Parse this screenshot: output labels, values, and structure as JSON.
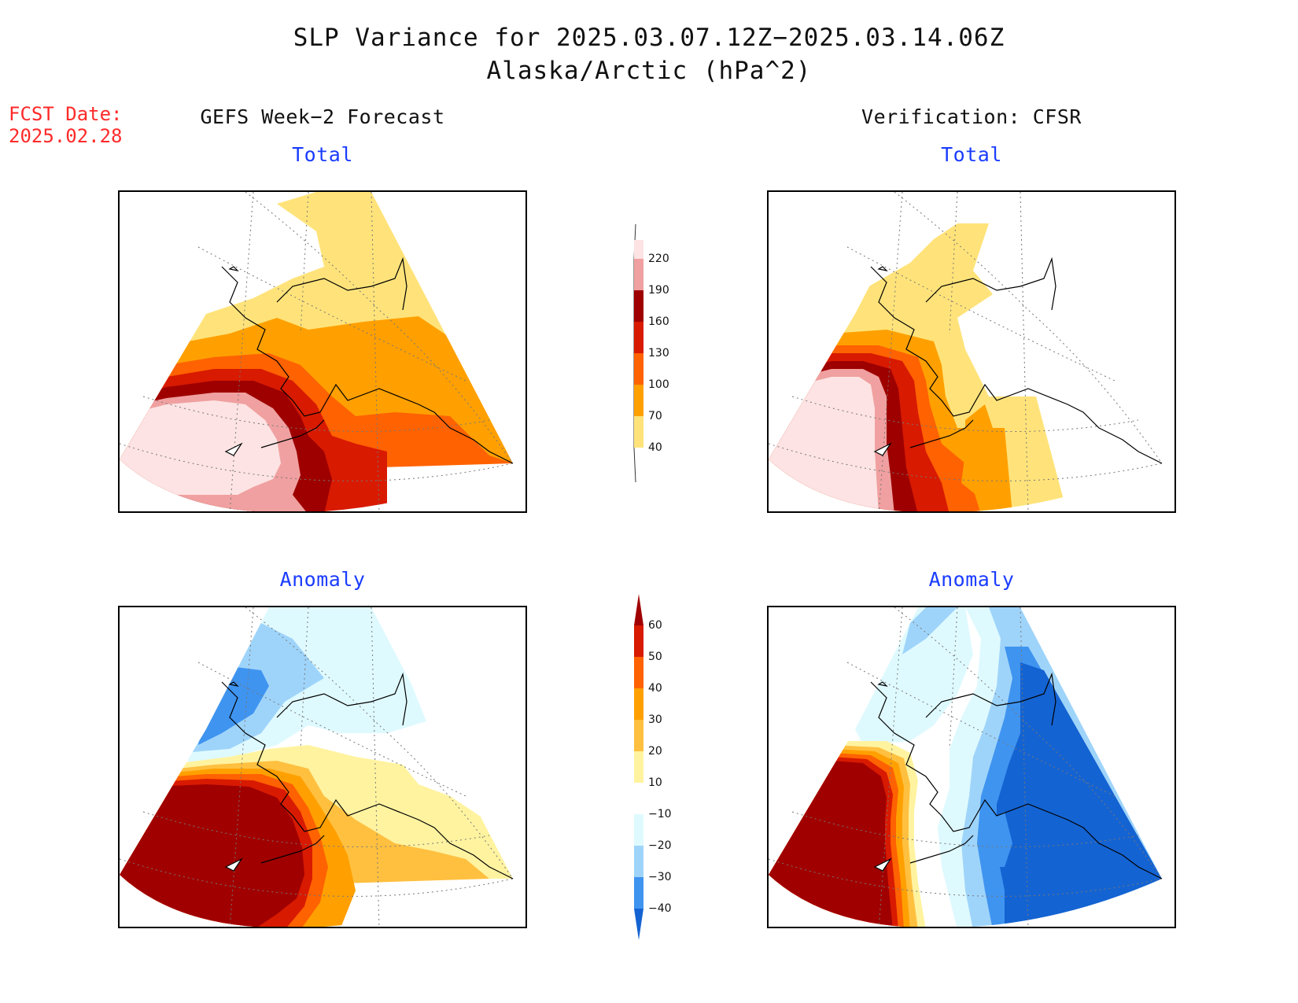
{
  "title": {
    "line1": "SLP Variance for 2025.03.07.12Z−2025.03.14.06Z",
    "line2": "Alaska/Arctic (hPa^2)"
  },
  "fcst": {
    "label": "FCST Date:",
    "date": "2025.02.28"
  },
  "columns": {
    "left_header": "GEFS Week−2 Forecast",
    "right_header": "Verification: CFSR"
  },
  "panels": {
    "top_left": "Total",
    "top_right": "Total",
    "bottom_left": "Anomaly",
    "bottom_right": "Anomaly"
  },
  "colorbar_total": {
    "labels": [
      "220",
      "190",
      "160",
      "130",
      "100",
      "70",
      "40"
    ],
    "colors": [
      "#fde3e3",
      "#f0a0a0",
      "#9e0000",
      "#d81a00",
      "#ff6200",
      "#ffa000",
      "#ffe37a"
    ]
  },
  "colorbar_anomaly": {
    "labels": [
      "60",
      "50",
      "40",
      "30",
      "20",
      "10",
      "−10",
      "−20",
      "−30",
      "−40"
    ],
    "colors": [
      "#a00000",
      "#d81a00",
      "#ff6200",
      "#ffa000",
      "#ffc040",
      "#fff3a0",
      "#ffffff",
      "#dffaff",
      "#9fd4fa",
      "#3f94f0",
      "#1463d2"
    ]
  },
  "colors": {
    "title": "#111111",
    "fcst": "#ff2a2a",
    "subtitle": "#1a3cff"
  }
}
